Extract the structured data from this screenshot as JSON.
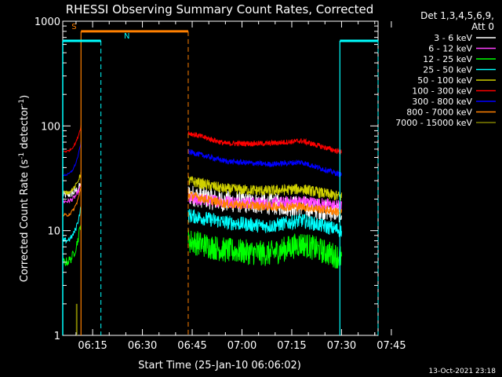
{
  "chart_data": {
    "type": "line",
    "title": "RHESSI Observing Summary Count Rates, Corrected",
    "xlabel": "Start Time (25-Jan-10 06:06:02)",
    "ylabel_main": "Corrected Count Rate (s",
    "ylabel_sup1": "-1",
    "ylabel_mid": " detector",
    "ylabel_sup2": "-1",
    "ylabel_end": ")",
    "yscale": "log",
    "ylim": [
      1,
      1000
    ],
    "xlim_minutes": [
      6.0,
      101.0
    ],
    "x_ticks": [
      {
        "label": "06:15",
        "min": 15
      },
      {
        "label": "06:30",
        "min": 30
      },
      {
        "label": "06:45",
        "min": 45
      },
      {
        "label": "07:00",
        "min": 60
      },
      {
        "label": "07:15",
        "min": 75
      },
      {
        "label": "07:30",
        "min": 90
      },
      {
        "label": "07:45",
        "min": 105
      }
    ],
    "y_ticks": [
      {
        "label": "1",
        "value": 1
      },
      {
        "label": "10",
        "value": 10
      },
      {
        "label": "100",
        "value": 100
      },
      {
        "label": "1000",
        "value": 1000
      }
    ],
    "legend_header": [
      "Det 1,3,4,5,6,9,",
      "Att 0"
    ],
    "series": [
      {
        "name": "3 - 6 keV",
        "color": "#ffffff",
        "kind": "noisy",
        "pre": [
          22,
          28
        ],
        "post": [
          22,
          19,
          18,
          17,
          15
        ],
        "noise": 0.12
      },
      {
        "name": "6 - 12 keV",
        "color": "#ff40ff",
        "kind": "noisy",
        "pre": [
          19,
          27
        ],
        "post": [
          20,
          19,
          18,
          19,
          17
        ],
        "noise": 0.07
      },
      {
        "name": "12 - 25 keV",
        "color": "#00ff00",
        "kind": "noisy",
        "pre": [
          5,
          12
        ],
        "post": [
          8,
          6.5,
          6,
          7.5,
          5.5
        ],
        "noise": 0.14
      },
      {
        "name": "25 - 50 keV",
        "color": "#00ffff",
        "kind": "noisy",
        "pre": [
          8,
          17
        ],
        "post": [
          14,
          12,
          11,
          12.5,
          10
        ],
        "noise": 0.08
      },
      {
        "name": "50 - 100 keV",
        "color": "#d0d000",
        "kind": "noisy",
        "pre": [
          23,
          36
        ],
        "post": [
          30,
          25,
          24,
          25,
          21
        ],
        "noise": 0.06
      },
      {
        "name": "100 - 300 keV",
        "color": "#ff0000",
        "kind": "noisy",
        "pre": [
          57,
          100
        ],
        "post": [
          86,
          68,
          68,
          72,
          56
        ],
        "noise": 0.03
      },
      {
        "name": "300 - 800 keV",
        "color": "#0000ff",
        "kind": "noisy",
        "pre": [
          34,
          70
        ],
        "post": [
          57,
          46,
          43,
          45,
          34
        ],
        "noise": 0.03
      },
      {
        "name": "800 - 7000 keV",
        "color": "#ff8000",
        "kind": "noisy",
        "pre": [
          14,
          26
        ],
        "post": [
          22,
          18,
          17,
          17,
          15
        ],
        "noise": 0.05
      },
      {
        "name": "7000 - 15000 keV",
        "color": "#808000",
        "kind": "spike",
        "spike_min": 10.2,
        "spike_value": 2
      }
    ],
    "data_gaps_minutes": [
      [
        11.5,
        43.8
      ],
      [
        90.0,
        101.0
      ]
    ],
    "flag_bars": [
      {
        "label": "S",
        "color": "#ff8000",
        "value": 800,
        "start": 11.5,
        "end": 43.8,
        "dashed_ends": [
          43.8
        ],
        "solid_ends": [
          11.5
        ]
      },
      {
        "label": "N",
        "color": "#00ffff",
        "value": 650,
        "start": 6.0,
        "end": 17.5,
        "dashed_ends": [
          17.5
        ]
      },
      {
        "label": "",
        "color": "#00ffff",
        "value": 650,
        "start": 89.5,
        "end": 101.0,
        "dashed_ends": [
          101.0
        ],
        "solid_ends": [
          89.5
        ]
      }
    ],
    "grid": false,
    "legend_position": "right"
  },
  "footer": {
    "date": "13-Oct-2021 23:18"
  }
}
